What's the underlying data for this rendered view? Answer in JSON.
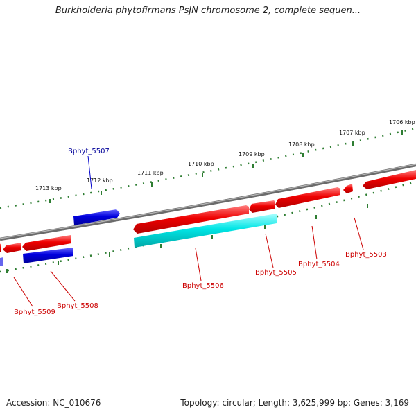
{
  "title": "Burkholderia phytofirmans PsJN chromosome 2, complete sequen...",
  "footer": {
    "accession": "Accession: NC_010676",
    "summary": "Topology: circular; Length: 3,625,999 bp; Genes: 3,169"
  },
  "scale_labels": [
    "1713 kbp",
    "1712 kbp",
    "1711 kbp",
    "1710 kbp",
    "1709 kbp",
    "1708 kbp",
    "1707 kbp",
    "1706 kbp"
  ],
  "gene_labels": {
    "bphyt_5507": "Bphyt_5507",
    "bphyt_5506": "Bphyt_5506",
    "bphyt_5505": "Bphyt_5505",
    "bphyt_5504": "Bphyt_5504",
    "bphyt_5503": "Bphyt_5503",
    "bphyt_5508": "Bphyt_5508",
    "bphyt_5509": "Bphyt_5509"
  },
  "colors": {
    "forward_gene": "#ee0000",
    "reverse_gene": "#0000dd",
    "highlight_gene": "#00e5e5",
    "backbone": "#808080",
    "tick": "#2e7d32",
    "forward_label": "#cc0000",
    "reverse_label": "#000099"
  }
}
